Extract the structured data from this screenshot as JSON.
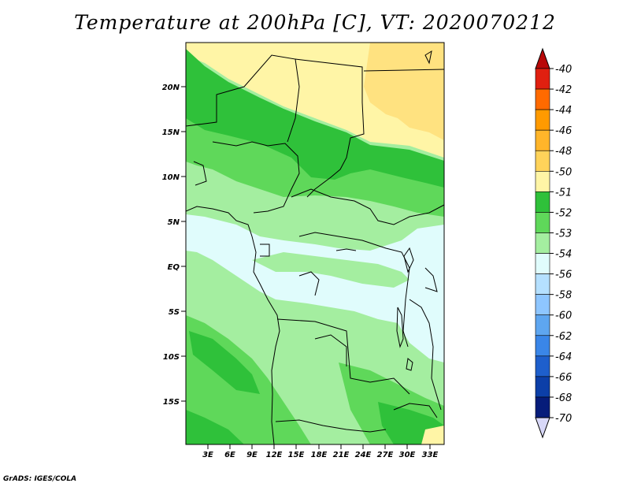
{
  "title": "Temperature at 200hPa [C], VT: 2020070212",
  "credit": "GrADS: IGES/COLA",
  "map": {
    "lat_labels": [
      "20N",
      "15N",
      "10N",
      "5N",
      "EQ",
      "5S",
      "10S",
      "15S"
    ],
    "lon_labels": [
      "3E",
      "6E",
      "9E",
      "12E",
      "15E",
      "18E",
      "21E",
      "24E",
      "27E",
      "30E",
      "33E"
    ]
  },
  "colorbar": {
    "labels": [
      "-40",
      "-42",
      "-44",
      "-46",
      "-48",
      "-50",
      "-51",
      "-52",
      "-53",
      "-54",
      "-56",
      "-58",
      "-60",
      "-62",
      "-64",
      "-66",
      "-68",
      "-70"
    ],
    "colors": [
      "#e02010",
      "#ff6a00",
      "#ff9a00",
      "#ffb52a",
      "#ffd35a",
      "#fff5a6",
      "#2fc13a",
      "#5fd85a",
      "#a4eea0",
      "#e0fcfc",
      "#b5e0ff",
      "#8ec6ff",
      "#5ea6f0",
      "#3a86e8",
      "#1e5fcc",
      "#0c3fa8",
      "#061c7a"
    ],
    "top_color": "#b80808",
    "bottom_color": "#d8d8f8"
  }
}
